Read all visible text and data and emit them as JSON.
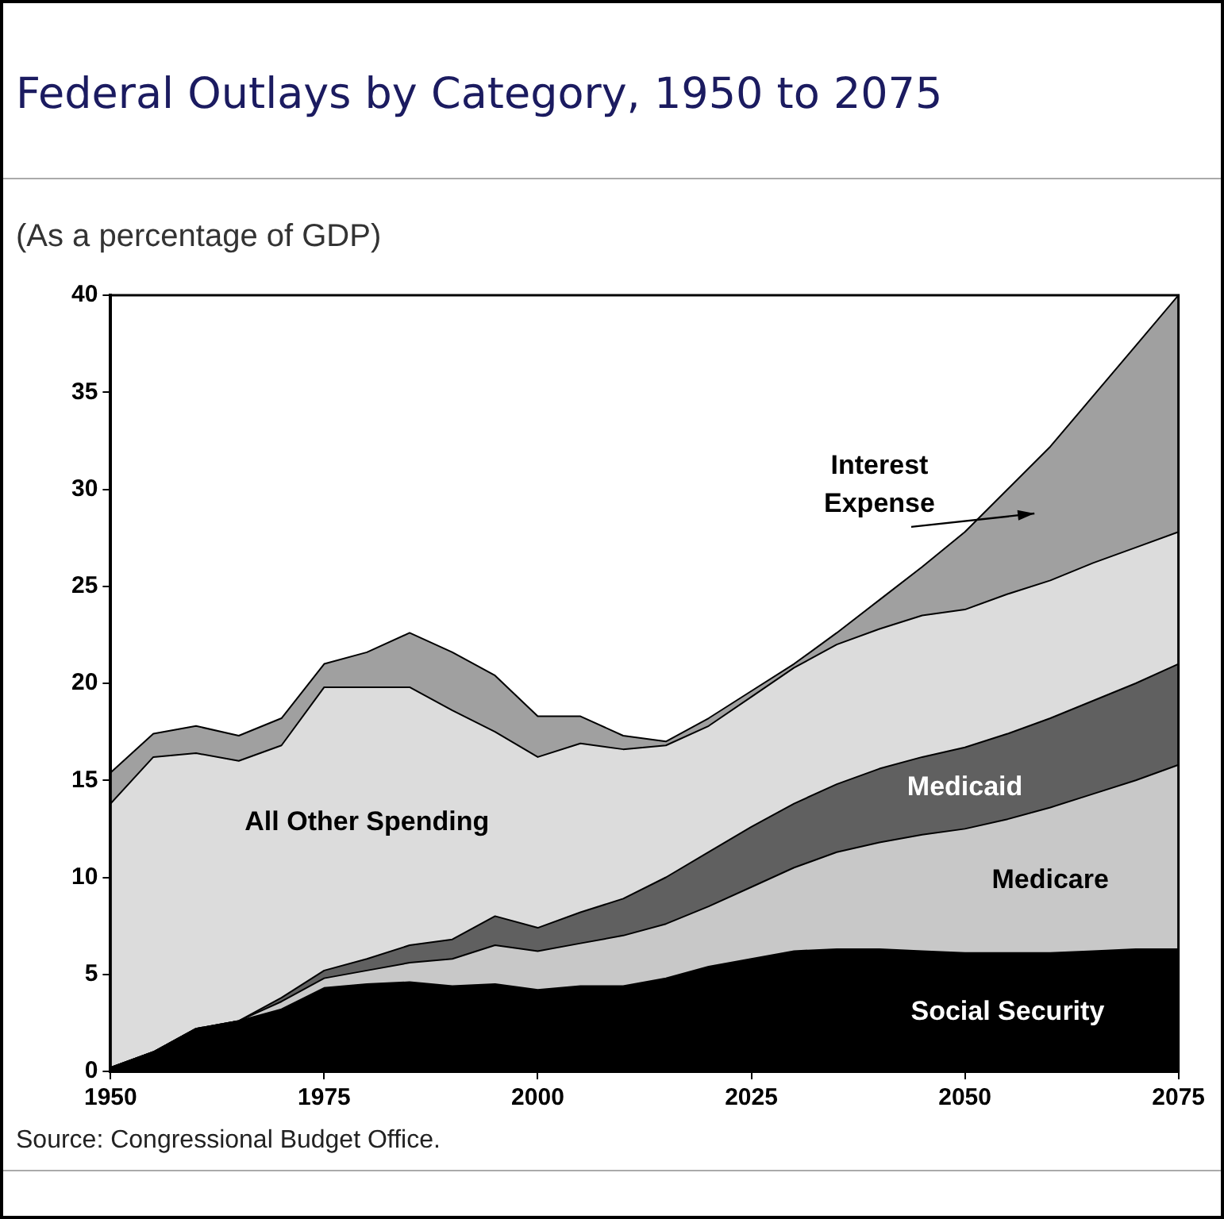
{
  "chart_data": {
    "type": "area",
    "title": "Federal Outlays by Category, 1950 to 2075",
    "subtitle": "(As a percentage of GDP)",
    "annotations": [
      "Source: Congressional Budget Office."
    ],
    "stacked": true,
    "grid": false,
    "legend": false,
    "x": [
      1950,
      1955,
      1960,
      1965,
      1970,
      1975,
      1980,
      1985,
      1990,
      1995,
      2000,
      2005,
      2010,
      2015,
      2020,
      2025,
      2030,
      2035,
      2040,
      2045,
      2050,
      2055,
      2060,
      2065,
      2070,
      2075
    ],
    "xlim": [
      1950,
      2075
    ],
    "xticks": [
      1950,
      1975,
      2000,
      2025,
      2050,
      2075
    ],
    "ylim": [
      0,
      40
    ],
    "yticks": [
      0,
      5,
      10,
      15,
      20,
      25,
      30,
      35,
      40
    ],
    "series": [
      {
        "name": "Social Security",
        "color": "#000000",
        "values": [
          0.2,
          1,
          2.2,
          2.6,
          3.2,
          4.3,
          4.5,
          4.6,
          4.4,
          4.5,
          4.2,
          4.4,
          4.4,
          4.8,
          5.4,
          5.8,
          6.2,
          6.3,
          6.3,
          6.2,
          6.1,
          6.1,
          6.1,
          6.2,
          6.3,
          6.3
        ]
      },
      {
        "name": "Medicare",
        "color": "#c8c8c8",
        "values": [
          0,
          0,
          0,
          0,
          0.4,
          0.5,
          0.7,
          1.0,
          1.4,
          2.0,
          2.0,
          2.2,
          2.6,
          2.8,
          3.1,
          3.7,
          4.3,
          5.0,
          5.5,
          6.0,
          6.4,
          6.9,
          7.5,
          8.1,
          8.7,
          9.5
        ]
      },
      {
        "name": "Medicaid",
        "color": "#606060",
        "values": [
          0,
          0,
          0,
          0,
          0.2,
          0.4,
          0.6,
          0.9,
          1.0,
          1.5,
          1.2,
          1.6,
          1.9,
          2.4,
          2.8,
          3.1,
          3.3,
          3.5,
          3.8,
          4.0,
          4.2,
          4.4,
          4.6,
          4.8,
          5.0,
          5.2
        ]
      },
      {
        "name": "All Other Spending",
        "color": "#dcdcdc",
        "values": [
          13.6,
          15.2,
          14.2,
          13.4,
          13.0,
          14.6,
          14.0,
          13.3,
          11.8,
          9.5,
          8.8,
          8.7,
          7.7,
          6.8,
          6.5,
          6.7,
          7.0,
          7.2,
          7.2,
          7.3,
          7.1,
          7.2,
          7.1,
          7.1,
          7.0,
          6.8
        ]
      },
      {
        "name": "Interest Expense",
        "color": "#a0a0a0",
        "values": [
          1.6,
          1.2,
          1.4,
          1.3,
          1.4,
          1.2,
          1.8,
          2.8,
          3.0,
          2.9,
          2.1,
          1.4,
          0.7,
          0.2,
          0.4,
          0.3,
          0.2,
          0.6,
          1.5,
          2.5,
          4.0,
          5.4,
          6.9,
          8.6,
          10.4,
          12.2
        ]
      }
    ]
  }
}
